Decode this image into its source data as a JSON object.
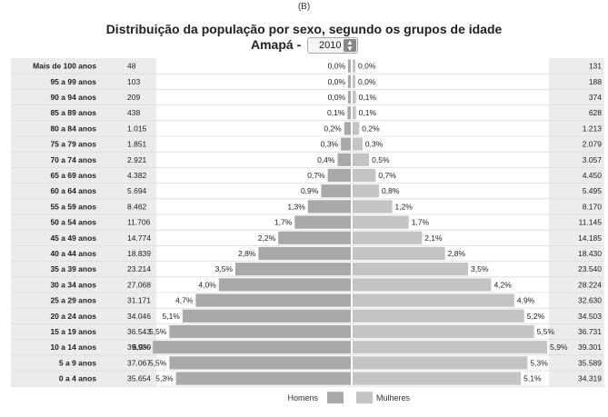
{
  "figure_tag": "(B)",
  "header": {
    "title": "Distribuição da população por sexo, segundo os grupos de idade",
    "location_label": "Amapá -",
    "year_select": {
      "value": "2010"
    }
  },
  "chart_data": {
    "type": "bar",
    "orientation": "horizontal-pyramid",
    "title": "Distribuição da população por sexo, segundo os grupos de idade",
    "categories": [
      "Mais de 100 anos",
      "95 a 99 anos",
      "90 a 94 anos",
      "85 a 89 anos",
      "80 a 84 anos",
      "75 a 79 anos",
      "70 a 74 anos",
      "65 a 69 anos",
      "60 a 64 anos",
      "55 a 59 anos",
      "50 a 54 anos",
      "45 a 49 anos",
      "40 a 44 anos",
      "35 a 39 anos",
      "30 a 34 anos",
      "25 a 29 anos",
      "20 a 24 anos",
      "15 a 19 anos",
      "10 a 14 anos",
      "5 a 9 anos",
      "0 a 4 anos"
    ],
    "series": [
      {
        "name": "Homens",
        "color": "#a9a9a9",
        "counts": [
          "48",
          "103",
          "209",
          "438",
          "1.015",
          "1.851",
          "2.921",
          "4.382",
          "5.694",
          "8.462",
          "11.706",
          "14.774",
          "18.839",
          "23.214",
          "27.068",
          "31.171",
          "34.046",
          "36.543",
          "39.930",
          "37.067",
          "35.654"
        ],
        "percent_labels": [
          "0,0%",
          "0,0%",
          "0,0%",
          "0,1%",
          "0,2%",
          "0,3%",
          "0,4%",
          "0,7%",
          "0,9%",
          "1,3%",
          "1,7%",
          "2,2%",
          "2,8%",
          "3,5%",
          "4,0%",
          "4,7%",
          "5,1%",
          "5,5%",
          "6,0%",
          "5,5%",
          "5,3%"
        ],
        "values": [
          0.0,
          0.0,
          0.0,
          0.1,
          0.2,
          0.3,
          0.4,
          0.7,
          0.9,
          1.3,
          1.7,
          2.2,
          2.8,
          3.5,
          4.0,
          4.7,
          5.1,
          5.5,
          6.0,
          5.5,
          5.3
        ]
      },
      {
        "name": "Mulheres",
        "color": "#c4c4c4",
        "counts": [
          "131",
          "188",
          "374",
          "628",
          "1.213",
          "2.079",
          "3.057",
          "4.450",
          "5.495",
          "8.170",
          "11.145",
          "14.185",
          "18.430",
          "23.540",
          "28.224",
          "32.630",
          "34.503",
          "36.731",
          "39.301",
          "35.589",
          "34.319"
        ],
        "percent_labels": [
          "0,0%",
          "0,0%",
          "0,1%",
          "0,1%",
          "0,2%",
          "0,3%",
          "0,5%",
          "0,7%",
          "0,8%",
          "1,2%",
          "1,7%",
          "2,1%",
          "2,8%",
          "3,5%",
          "4,2%",
          "4,9%",
          "5,2%",
          "5,5%",
          "5,9%",
          "5,3%",
          "5,1%"
        ],
        "values": [
          0.0,
          0.0,
          0.1,
          0.1,
          0.2,
          0.3,
          0.5,
          0.7,
          0.8,
          1.2,
          1.7,
          2.1,
          2.8,
          3.5,
          4.2,
          4.9,
          5.2,
          5.5,
          5.9,
          5.3,
          5.1
        ]
      }
    ],
    "legend": {
      "placement": "bottom-center",
      "items": [
        "Homens",
        "Mulheres"
      ]
    }
  }
}
